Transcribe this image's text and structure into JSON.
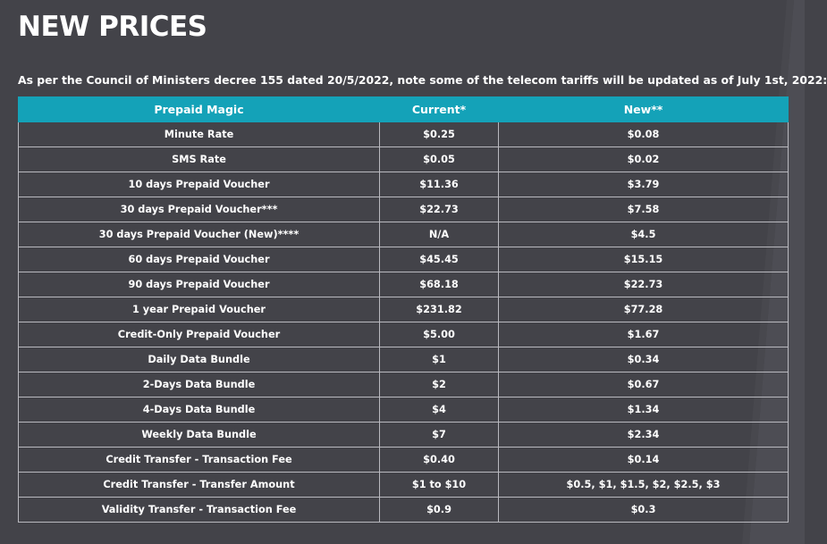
{
  "title": "NEW PRICES",
  "intro": "As per the Council of Ministers decree 155 dated 20/5/2022, note some of the telecom tariffs will be updated as of July 1st, 2022:",
  "colors": {
    "background": "#434349",
    "header": "#14a2b8",
    "border": "#b9b9bf",
    "text": "#ffffff"
  },
  "table": {
    "headers": [
      "Prepaid Magic",
      "Current*",
      "New**"
    ],
    "rows": [
      [
        "Minute Rate",
        "$0.25",
        "$0.08"
      ],
      [
        "SMS Rate",
        "$0.05",
        "$0.02"
      ],
      [
        "10 days Prepaid Voucher",
        "$11.36",
        "$3.79"
      ],
      [
        "30 days Prepaid Voucher***",
        "$22.73",
        "$7.58"
      ],
      [
        "30 days Prepaid Voucher (New)****",
        "N/A",
        "$4.5"
      ],
      [
        "60 days Prepaid Voucher",
        "$45.45",
        "$15.15"
      ],
      [
        "90 days Prepaid Voucher",
        "$68.18",
        "$22.73"
      ],
      [
        "1 year Prepaid Voucher",
        "$231.82",
        "$77.28"
      ],
      [
        "Credit-Only Prepaid Voucher",
        "$5.00",
        "$1.67"
      ],
      [
        "Daily Data Bundle",
        "$1",
        "$0.34"
      ],
      [
        "2-Days Data Bundle",
        "$2",
        "$0.67"
      ],
      [
        "4-Days Data Bundle",
        "$4",
        "$1.34"
      ],
      [
        "Weekly Data Bundle",
        "$7",
        "$2.34"
      ],
      [
        "Credit Transfer - Transaction Fee",
        "$0.40",
        "$0.14"
      ],
      [
        "Credit Transfer - Transfer Amount",
        "$1 to $10",
        "$0.5, $1, $1.5, $2, $2.5, $3"
      ],
      [
        "Validity Transfer - Transaction Fee",
        "$0.9",
        "$0.3"
      ]
    ]
  }
}
